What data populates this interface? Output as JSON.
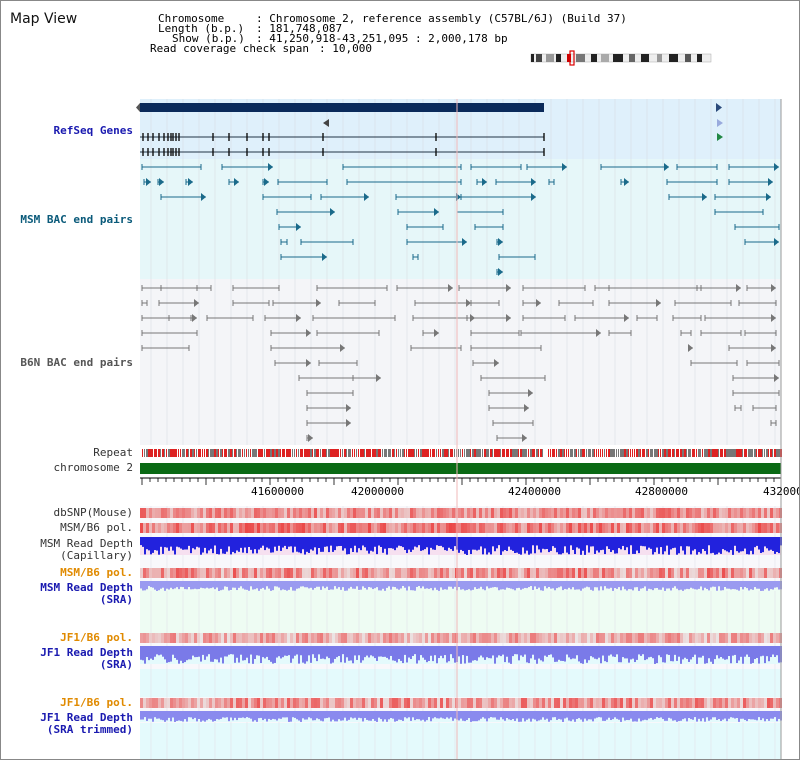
{
  "window": {
    "title": "Map View"
  },
  "info": {
    "chromosome_label": "Chromosome",
    "chromosome_value": ": Chromosome 2, reference assembly (C57BL/6J) (Build 37)",
    "length_label": "Length (b.p.)",
    "length_value": ": 181,748,087",
    "show_label": "Show (b.p.)",
    "show_value": ": 41,250,918-43,251,095 : 2,000,178 bp",
    "coverage_label": "Read coverage check span",
    "coverage_value": ": 10,000"
  },
  "tracks": {
    "refseq": "RefSeq Genes",
    "msm_bac": "MSM BAC end pairs",
    "b6n_bac": "B6N BAC end pairs",
    "repeat": "Repeat",
    "chromosome": "chromosome 2",
    "dbsnp": "dbSNP(Mouse)",
    "msm_b6_pol": "MSM/B6 pol.",
    "msm_read_depth_cap_1": "MSM Read Depth",
    "msm_read_depth_cap_2": "(Capillary)",
    "msm_b6_pol_2": "MSM/B6 pol.",
    "msm_read_depth_sra_1": "MSM Read Depth",
    "msm_read_depth_sra_2": "(SRA)",
    "jf1_b6_pol": "JF1/B6 pol.",
    "jf1_read_depth_sra_1": "JF1 Read Depth",
    "jf1_read_depth_sra_2": "(SRA)",
    "jf1_b6_pol_2": "JF1/B6 pol.",
    "jf1_read_depth_trim_1": "JF1 Read Depth",
    "jf1_read_depth_trim_2": "(SRA trimmed)"
  },
  "axis": {
    "ticks": [
      "41600000",
      "42000000",
      "42400000",
      "42800000",
      "432000"
    ]
  },
  "colors": {
    "refseq_label": "#1a1ab0",
    "msm_label": "#0a5a7a",
    "b6n_label": "#555555",
    "pol_orange": "#e08a00",
    "depth_blue": "#1a1ab0",
    "refseq_bg": "#dff0fb",
    "msm_bg": "#e6f7f9",
    "chrom_green": "#0a6a14",
    "refseq_bar": "#0a2a5a"
  }
}
